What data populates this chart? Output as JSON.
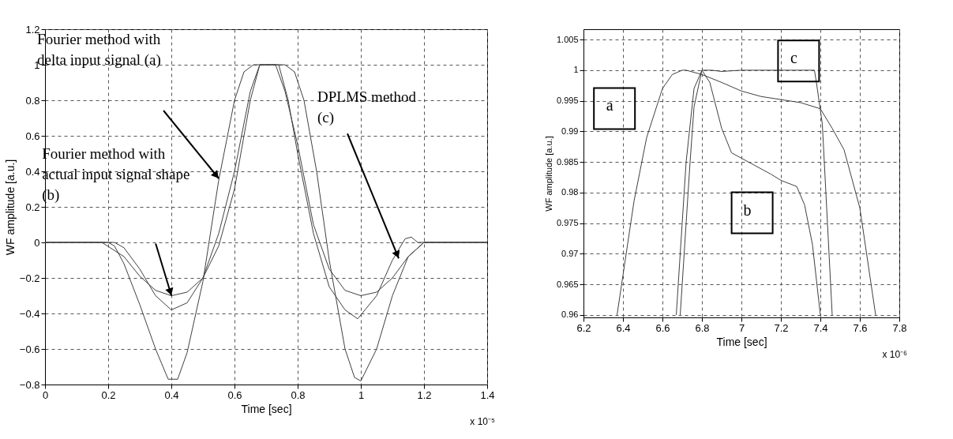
{
  "chart_data": [
    {
      "type": "line",
      "xlabel": "Time [sec]",
      "ylabel": "WF amplitude [a.u.]",
      "xlim": [
        0,
        1.4
      ],
      "xticks": [
        0,
        0.2,
        0.4,
        0.6,
        0.8,
        1,
        1.2,
        1.4
      ],
      "ylim": [
        -0.8,
        1.2
      ],
      "yticks": [
        -0.8,
        -0.6,
        -0.4,
        -0.2,
        0,
        0.2,
        0.4,
        0.6,
        0.8,
        1,
        1.2
      ],
      "grid": true,
      "legend": false,
      "line_style": "solid",
      "series": [
        {
          "color": "#404040",
          "x": [
            0,
            0.2,
            0.22,
            0.25,
            0.3,
            0.35,
            0.39,
            0.42,
            0.45,
            0.5,
            0.55,
            0.6,
            0.63,
            0.66,
            0.76,
            0.79,
            0.82,
            0.86,
            0.9,
            0.95,
            0.98,
            1.0,
            1.05,
            1.1,
            1.15,
            1.2,
            1.4
          ],
          "values": [
            0,
            0,
            -0.02,
            -0.12,
            -0.35,
            -0.6,
            -0.77,
            -0.77,
            -0.62,
            -0.22,
            0.35,
            0.8,
            0.96,
            1,
            1,
            0.96,
            0.8,
            0.4,
            -0.1,
            -0.6,
            -0.76,
            -0.78,
            -0.6,
            -0.3,
            -0.08,
            0,
            0
          ]
        },
        {
          "color": "#404040",
          "x": [
            0,
            0.18,
            0.25,
            0.3,
            0.35,
            0.4,
            0.45,
            0.5,
            0.55,
            0.6,
            0.65,
            0.68,
            0.73,
            0.76,
            0.8,
            0.85,
            0.9,
            0.95,
            1.0,
            1.05,
            1.1,
            1.15,
            1.2,
            1.4
          ],
          "values": [
            0,
            0,
            -0.08,
            -0.19,
            -0.27,
            -0.3,
            -0.28,
            -0.2,
            -0.02,
            0.3,
            0.8,
            1,
            1,
            0.85,
            0.55,
            0.1,
            -0.15,
            -0.27,
            -0.3,
            -0.28,
            -0.2,
            -0.08,
            0,
            0
          ]
        },
        {
          "color": "#404040",
          "x": [
            0,
            0.22,
            0.25,
            0.3,
            0.35,
            0.4,
            0.45,
            0.5,
            0.55,
            0.6,
            0.65,
            0.68,
            0.74,
            0.77,
            0.8,
            0.85,
            0.9,
            0.95,
            0.99,
            1.05,
            1.1,
            1.14,
            1.16,
            1.18,
            1.2,
            1.4
          ],
          "values": [
            0,
            0,
            -0.03,
            -0.15,
            -0.3,
            -0.38,
            -0.34,
            -0.2,
            0.05,
            0.4,
            0.85,
            1,
            1,
            0.8,
            0.5,
            0.05,
            -0.25,
            -0.38,
            -0.43,
            -0.3,
            -0.1,
            0.02,
            0.03,
            0.0,
            0,
            0
          ]
        }
      ],
      "annotations": [
        "Fourier method with\ndelta input signal  (a)",
        "Fourier method with\nactual input signal shape\n(b)",
        "DPLMS method\n(c)",
        "x 10⁻⁵"
      ]
    },
    {
      "type": "line",
      "xlabel": "Time [sec]",
      "ylabel": "WF amplitude [a.u.]",
      "xlim": [
        6.2,
        7.8
      ],
      "xticks": [
        6.2,
        6.4,
        6.6,
        6.8,
        7,
        7.2,
        7.4,
        7.6,
        7.8
      ],
      "ylim": [
        0.9596,
        1.0067
      ],
      "yticks": [
        0.96,
        0.965,
        0.97,
        0.975,
        0.98,
        0.985,
        0.99,
        0.995,
        1,
        1.005
      ],
      "grid": true,
      "legend": false,
      "line_style": "solid",
      "series": [
        {
          "color": "#404040",
          "x": [
            6.37,
            6.456,
            6.52,
            6.6,
            6.65,
            6.7,
            6.72,
            6.8,
            6.9,
            7.0,
            7.1,
            7.2,
            7.3,
            7.4,
            7.46,
            7.52,
            7.6,
            7.68
          ],
          "values": [
            0.96,
            0.9786,
            0.989,
            0.997,
            0.9993,
            1.0,
            1.0,
            0.9993,
            0.998,
            0.9966,
            0.9957,
            0.9952,
            0.9947,
            0.9937,
            0.9905,
            0.987,
            0.9775,
            0.96
          ]
        },
        {
          "color": "#404040",
          "x": [
            6.67,
            6.72,
            6.76,
            6.8,
            6.84,
            6.9,
            6.95,
            7.15,
            7.2,
            7.28,
            7.32,
            7.36,
            7.4
          ],
          "values": [
            0.96,
            0.985,
            0.997,
            1.0,
            0.998,
            0.9905,
            0.9865,
            0.983,
            0.982,
            0.981,
            0.978,
            0.9715,
            0.96
          ]
        },
        {
          "color": "#404040",
          "x": [
            6.69,
            6.74,
            6.76,
            6.8,
            6.85,
            6.9,
            7.0,
            7.2,
            7.37,
            7.38,
            7.41,
            7.46
          ],
          "values": [
            0.96,
            0.985,
            0.994,
            1.0,
            1.0,
            0.9998,
            1.0,
            1.0,
            1.0,
            0.998,
            0.9912,
            0.96
          ]
        }
      ],
      "annotations": [
        "a",
        "b",
        "c",
        "x 10⁻⁶"
      ]
    }
  ]
}
